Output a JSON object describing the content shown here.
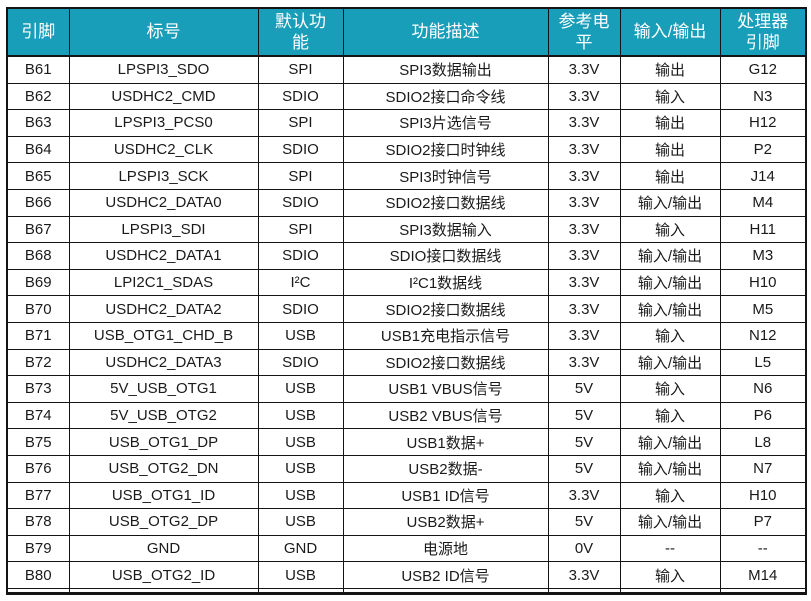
{
  "table": {
    "title": "pin-assignment-table",
    "header_bg": "#189EB9",
    "header_text_color": "#FFFFFF",
    "border_color": "#141414",
    "row_bg": "#FFFFFF",
    "columns": [
      {
        "key": "pin",
        "label": "引脚"
      },
      {
        "key": "signal_label",
        "label": "标号"
      },
      {
        "key": "default_function",
        "label": "默认功\n能"
      },
      {
        "key": "description",
        "label": "功能描述"
      },
      {
        "key": "reference_level",
        "label": "参考电\n平"
      },
      {
        "key": "io",
        "label": "输入/输出"
      },
      {
        "key": "processor_pin",
        "label": "处理器\n引脚"
      }
    ],
    "rows": [
      [
        "B61",
        "LPSPI3_SDO",
        "SPI",
        "SPI3数据输出",
        "3.3V",
        "输出",
        "G12"
      ],
      [
        "B62",
        "USDHC2_CMD",
        "SDIO",
        "SDIO2接口命令线",
        "3.3V",
        "输入",
        "N3"
      ],
      [
        "B63",
        "LPSPI3_PCS0",
        "SPI",
        "SPI3片选信号",
        "3.3V",
        "输出",
        "H12"
      ],
      [
        "B64",
        "USDHC2_CLK",
        "SDIO",
        "SDIO2接口时钟线",
        "3.3V",
        "输出",
        "P2"
      ],
      [
        "B65",
        "LPSPI3_SCK",
        "SPI",
        "SPI3时钟信号",
        "3.3V",
        "输出",
        "J14"
      ],
      [
        "B66",
        "USDHC2_DATA0",
        "SDIO",
        "SDIO2接口数据线",
        "3.3V",
        "输入/输出",
        "M4"
      ],
      [
        "B67",
        "LPSPI3_SDI",
        "SPI",
        "SPI3数据输入",
        "3.3V",
        "输入",
        "H11"
      ],
      [
        "B68",
        "USDHC2_DATA1",
        "SDIO",
        "SDIO接口数据线",
        "3.3V",
        "输入/输出",
        "M3"
      ],
      [
        "B69",
        "LPI2C1_SDAS",
        "I²C",
        "I²C1数据线",
        "3.3V",
        "输入/输出",
        "H10"
      ],
      [
        "B70",
        "USDHC2_DATA2",
        "SDIO",
        "SDIO2接口数据线",
        "3.3V",
        "输入/输出",
        "M5"
      ],
      [
        "B71",
        "USB_OTG1_CHD_B",
        "USB",
        "USB1充电指示信号",
        "3.3V",
        "输入",
        "N12"
      ],
      [
        "B72",
        "USDHC2_DATA3",
        "SDIO",
        "SDIO2接口数据线",
        "3.3V",
        "输入/输出",
        "L5"
      ],
      [
        "B73",
        "5V_USB_OTG1",
        "USB",
        "USB1 VBUS信号",
        "5V",
        "输入",
        "N6"
      ],
      [
        "B74",
        "5V_USB_OTG2",
        "USB",
        "USB2 VBUS信号",
        "5V",
        "输入",
        "P6"
      ],
      [
        "B75",
        "USB_OTG1_DP",
        "USB",
        "USB1数据+",
        "5V",
        "输入/输出",
        "L8"
      ],
      [
        "B76",
        "USB_OTG2_DN",
        "USB",
        "USB2数据-",
        "5V",
        "输入/输出",
        "N7"
      ],
      [
        "B77",
        "USB_OTG1_ID",
        "USB",
        "USB1 ID信号",
        "3.3V",
        "输入",
        "H10"
      ],
      [
        "B78",
        "USB_OTG2_DP",
        "USB",
        "USB2数据+",
        "5V",
        "输入/输出",
        "P7"
      ],
      [
        "B79",
        "GND",
        "GND",
        "电源地",
        "0V",
        "--",
        "--"
      ],
      [
        "B80",
        "USB_OTG2_ID",
        "USB",
        "USB2 ID信号",
        "3.3V",
        "输入",
        "M14"
      ]
    ]
  }
}
